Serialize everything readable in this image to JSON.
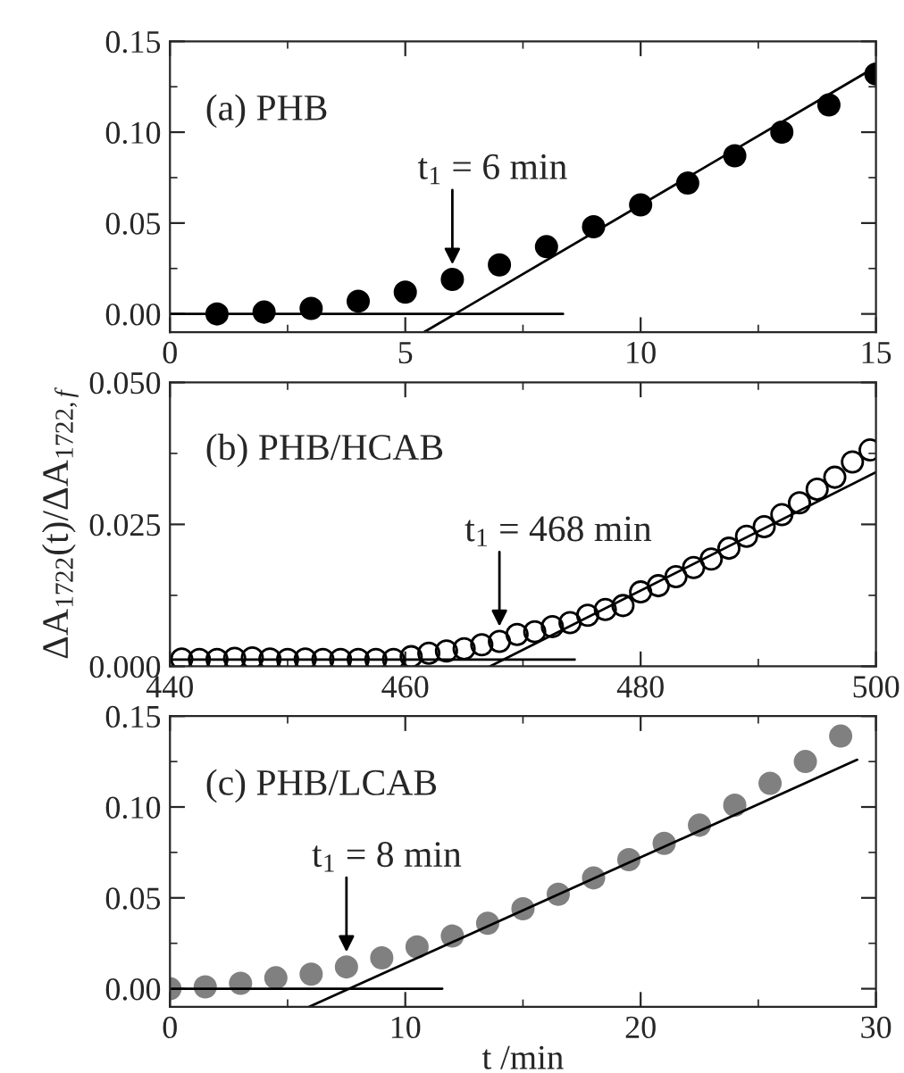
{
  "chart_data": [
    {
      "type": "scatter",
      "xlim": [
        0,
        15
      ],
      "ylim": [
        -0.01,
        0.15
      ],
      "xticks": [
        0,
        5,
        10,
        15
      ],
      "yticks": [
        {
          "value": 0,
          "label": "0.00"
        },
        {
          "value": 0.05,
          "label": "0.05"
        },
        {
          "value": 0.1,
          "label": "0.10"
        },
        {
          "value": 0.15,
          "label": "0.15"
        }
      ],
      "grid": false,
      "legend": false,
      "series": [
        {
          "marker": "circle",
          "color": "#000000",
          "x": [
            1,
            2,
            3,
            4,
            5,
            6,
            7,
            8,
            9,
            10,
            11,
            12,
            13,
            14,
            15
          ],
          "values": [
            0.0,
            0.001,
            0.003,
            0.007,
            0.012,
            0.019,
            0.027,
            0.037,
            0.048,
            0.06,
            0.072,
            0.087,
            0.1,
            0.115,
            0.132
          ]
        },
        {
          "type": "line",
          "line_style": "solid",
          "color": "#000000",
          "x": [
            0,
            8.35
          ],
          "values": [
            0,
            0
          ]
        },
        {
          "type": "line",
          "line_style": "solid",
          "color": "#000000",
          "x": [
            5.4,
            15
          ],
          "values": [
            -0.01,
            0.136
          ]
        }
      ],
      "annotations": [
        "(a) PHB",
        {
          "text": "t$_{1}$ = 6 min",
          "x": 6,
          "y": 0.019
        }
      ]
    },
    {
      "type": "scatter",
      "xlim": [
        440,
        500
      ],
      "ylim": [
        0,
        0.05
      ],
      "xticks": [
        440,
        460,
        480,
        500
      ],
      "yticks": [
        {
          "value": 0,
          "label": "0.000"
        },
        {
          "value": 0.025,
          "label": "0.025"
        },
        {
          "value": 0.05,
          "label": "0.050"
        }
      ],
      "grid": false,
      "legend": false,
      "ylabel": "ΔA$_{1722}$(t)/ΔA$_{1722,f}$",
      "series": [
        {
          "marker": "circle",
          "color": "#000000",
          "x": [
            441,
            442.5,
            444,
            445.5,
            447,
            448.5,
            450,
            451.5,
            453,
            454.5,
            456,
            457.5,
            459,
            460.5,
            462,
            463.5,
            465,
            466.5,
            468,
            469.5,
            471,
            472.5,
            474,
            475.5,
            477,
            478.5,
            480,
            481.5,
            483,
            484.5,
            486,
            487.5,
            489,
            490.5,
            492,
            493.5,
            495,
            496.5,
            498,
            499.5
          ],
          "values": [
            0.0013,
            0.0012,
            0.0012,
            0.0014,
            0.0015,
            0.0013,
            0.0012,
            0.0013,
            0.0012,
            0.0012,
            0.0012,
            0.0012,
            0.0012,
            0.0017,
            0.0023,
            0.0027,
            0.0031,
            0.0038,
            0.0044,
            0.0056,
            0.0061,
            0.007,
            0.0077,
            0.009,
            0.01,
            0.0107,
            0.0131,
            0.0142,
            0.0158,
            0.0174,
            0.0189,
            0.0208,
            0.0229,
            0.0246,
            0.0267,
            0.0288,
            0.0312,
            0.0333,
            0.036,
            0.0381
          ]
        },
        {
          "type": "line",
          "line_style": "solid",
          "color": "#000000",
          "x": [
            440,
            474.4
          ],
          "values": [
            0.0012,
            0.0012
          ]
        },
        {
          "type": "line",
          "line_style": "solid",
          "color": "#000000",
          "x": [
            467.2,
            500
          ],
          "values": [
            0,
            0.0342
          ]
        }
      ],
      "annotations": [
        "(b) PHB/HCAB",
        {
          "text": "t$_{1}$ = 468 min",
          "x": 468,
          "y": 0.0044
        }
      ]
    },
    {
      "type": "scatter",
      "xlim": [
        0,
        30
      ],
      "ylim": [
        -0.01,
        0.15
      ],
      "xticks": [
        0,
        10,
        20,
        30
      ],
      "yticks": [
        {
          "value": 0,
          "label": "0.00"
        },
        {
          "value": 0.05,
          "label": "0.05"
        },
        {
          "value": 0.1,
          "label": "0.10"
        },
        {
          "value": 0.15,
          "label": "0.15"
        }
      ],
      "grid": false,
      "legend": false,
      "xlabel": "t /min",
      "series": [
        {
          "marker": "circle",
          "color": "#808080",
          "x": [
            0,
            1.5,
            3,
            4.5,
            6,
            7.5,
            9,
            10.5,
            12,
            13.5,
            15,
            16.5,
            18,
            19.5,
            21,
            22.5,
            24,
            25.5,
            27,
            28.5
          ],
          "values": [
            0.0,
            0.001,
            0.003,
            0.006,
            0.008,
            0.012,
            0.017,
            0.023,
            0.029,
            0.036,
            0.044,
            0.052,
            0.061,
            0.071,
            0.08,
            0.09,
            0.101,
            0.113,
            0.125,
            0.139
          ]
        },
        {
          "type": "line",
          "line_style": "solid",
          "color": "#000000",
          "x": [
            0,
            11.57
          ],
          "values": [
            0,
            0
          ]
        },
        {
          "type": "line",
          "line_style": "solid",
          "color": "#000000",
          "x": [
            5.9,
            29.2
          ],
          "values": [
            -0.01,
            0.126
          ]
        }
      ],
      "annotations": [
        "(c) PHB/LCAB",
        {
          "text": "t$_{1}$ = 8 min",
          "x": 7.5,
          "y": 0.012
        }
      ]
    }
  ]
}
